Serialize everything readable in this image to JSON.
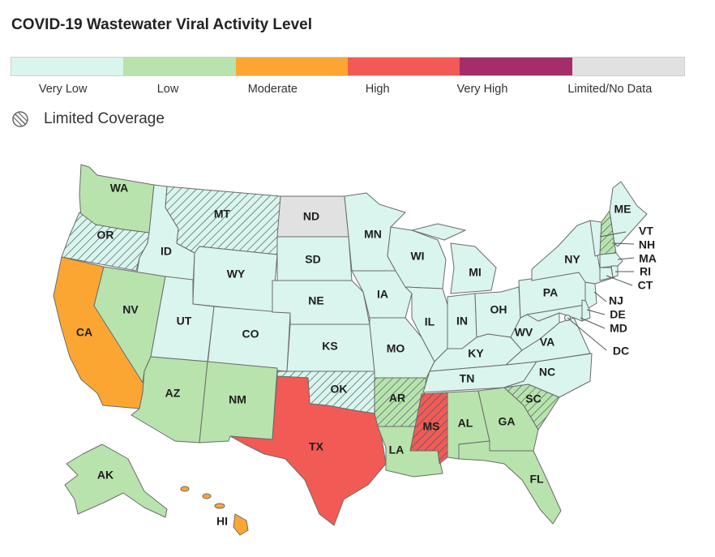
{
  "title": "COVID-19 Wastewater Viral Activity Level",
  "legend": [
    {
      "label": "Very Low",
      "color": "#daf4ee"
    },
    {
      "label": "Low",
      "color": "#b8e3ad"
    },
    {
      "label": "Moderate",
      "color": "#fba633"
    },
    {
      "label": "High",
      "color": "#f25a55"
    },
    {
      "label": "Very High",
      "color": "#a42d6a"
    },
    {
      "label": "Limited/No Data",
      "color": "#e1e1e1"
    }
  ],
  "limited_coverage_label": "Limited Coverage",
  "states": {
    "WA": {
      "label": "WA",
      "level": "Low",
      "limited": false
    },
    "OR": {
      "label": "OR",
      "level": "Very Low",
      "limited": true
    },
    "CA": {
      "label": "CA",
      "level": "Moderate",
      "limited": false
    },
    "ID": {
      "label": "ID",
      "level": "Very Low",
      "limited": false
    },
    "NV": {
      "label": "NV",
      "level": "Low",
      "limited": false
    },
    "MT": {
      "label": "MT",
      "level": "Very Low",
      "limited": true
    },
    "WY": {
      "label": "WY",
      "level": "Very Low",
      "limited": false
    },
    "UT": {
      "label": "UT",
      "level": "Very Low",
      "limited": false
    },
    "AZ": {
      "label": "AZ",
      "level": "Low",
      "limited": false
    },
    "CO": {
      "label": "CO",
      "level": "Very Low",
      "limited": false
    },
    "NM": {
      "label": "NM",
      "level": "Low",
      "limited": false
    },
    "ND": {
      "label": "ND",
      "level": "Limited/No Data",
      "limited": false
    },
    "SD": {
      "label": "SD",
      "level": "Very Low",
      "limited": false
    },
    "NE": {
      "label": "NE",
      "level": "Very Low",
      "limited": false
    },
    "KS": {
      "label": "KS",
      "level": "Very Low",
      "limited": false
    },
    "OK": {
      "label": "OK",
      "level": "Very Low",
      "limited": true
    },
    "TX": {
      "label": "TX",
      "level": "High",
      "limited": false
    },
    "MN": {
      "label": "MN",
      "level": "Very Low",
      "limited": false
    },
    "IA": {
      "label": "IA",
      "level": "Very Low",
      "limited": false
    },
    "MO": {
      "label": "MO",
      "level": "Very Low",
      "limited": false
    },
    "AR": {
      "label": "AR",
      "level": "Low",
      "limited": true
    },
    "LA": {
      "label": "LA",
      "level": "Low",
      "limited": false
    },
    "WI": {
      "label": "WI",
      "level": "Very Low",
      "limited": false
    },
    "IL": {
      "label": "IL",
      "level": "Very Low",
      "limited": false
    },
    "MS": {
      "label": "MS",
      "level": "High",
      "limited": true
    },
    "MI": {
      "label": "MI",
      "level": "Very Low",
      "limited": false
    },
    "IN": {
      "label": "IN",
      "level": "Very Low",
      "limited": false
    },
    "KY": {
      "label": "KY",
      "level": "Very Low",
      "limited": false
    },
    "TN": {
      "label": "TN",
      "level": "Very Low",
      "limited": false
    },
    "AL": {
      "label": "AL",
      "level": "Low",
      "limited": false
    },
    "OH": {
      "label": "OH",
      "level": "Very Low",
      "limited": false
    },
    "GA": {
      "label": "GA",
      "level": "Low",
      "limited": false
    },
    "FL": {
      "label": "FL",
      "level": "Low",
      "limited": false
    },
    "SC": {
      "label": "SC",
      "level": "Low",
      "limited": true
    },
    "NC": {
      "label": "NC",
      "level": "Very Low",
      "limited": false
    },
    "VA": {
      "label": "VA",
      "level": "Very Low",
      "limited": false
    },
    "WV": {
      "label": "WV",
      "level": "Very Low",
      "limited": false
    },
    "PA": {
      "label": "PA",
      "level": "Very Low",
      "limited": false
    },
    "NY": {
      "label": "NY",
      "level": "Very Low",
      "limited": false
    },
    "ME": {
      "label": "ME",
      "level": "Very Low",
      "limited": false
    },
    "VT": {
      "label": "VT",
      "level": "Very Low",
      "limited": false
    },
    "NH": {
      "label": "NH",
      "level": "Low",
      "limited": true
    },
    "MA": {
      "label": "MA",
      "level": "Very Low",
      "limited": false
    },
    "RI": {
      "label": "RI",
      "level": "Very Low",
      "limited": false
    },
    "CT": {
      "label": "CT",
      "level": "Very Low",
      "limited": false
    },
    "NJ": {
      "label": "NJ",
      "level": "Very Low",
      "limited": false
    },
    "DE": {
      "label": "DE",
      "level": "Very Low",
      "limited": false
    },
    "MD": {
      "label": "MD",
      "level": "Very Low",
      "limited": false
    },
    "DC": {
      "label": "DC",
      "level": "Very Low",
      "limited": false
    },
    "AK": {
      "label": "AK",
      "level": "Low",
      "limited": false
    },
    "HI": {
      "label": "HI",
      "level": "Moderate",
      "limited": false
    }
  }
}
